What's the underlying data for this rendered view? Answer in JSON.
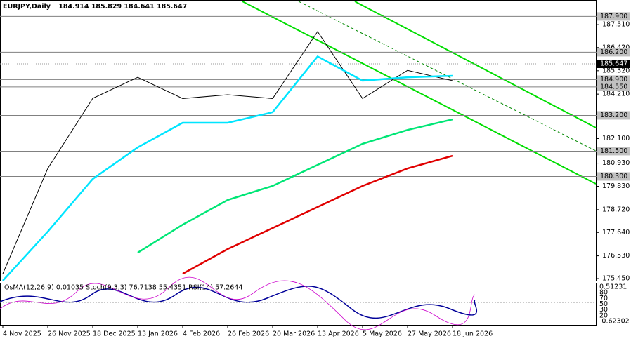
{
  "chart_data": {
    "type": "line",
    "symbol": "EURJPY,Daily",
    "ohlc_text": "184.914 185.829 184.641 185.647",
    "x": [
      "4 Nov 2025",
      "26 Nov 2025",
      "18 Dec 2025",
      "13 Jan 2026",
      "4 Feb 2026",
      "26 Feb 2026",
      "20 Mar 2026",
      "13 Apr 2026",
      "5 May 2026",
      "27 May 2026",
      "18 Jun 2026"
    ],
    "series": [
      {
        "name": "Close",
        "color": "#000000",
        "values": [
          175.68,
          180.68,
          184.01,
          185.01,
          184.0,
          184.18,
          184.0,
          187.18,
          184.0,
          185.34,
          184.85
        ]
      },
      {
        "name": "MA fast",
        "color": "#00e5ff",
        "values": [
          175.35,
          177.68,
          180.18,
          181.68,
          182.85,
          182.85,
          183.35,
          186.0,
          184.85,
          185.01,
          185.08
        ]
      },
      {
        "name": "MA medium",
        "color": "#00e676",
        "values": [
          null,
          null,
          null,
          176.68,
          178.01,
          179.18,
          179.85,
          180.85,
          181.85,
          182.51,
          183.01
        ]
      },
      {
        "name": "MA slow",
        "color": "#e00000",
        "values": [
          null,
          null,
          null,
          null,
          175.68,
          176.85,
          177.85,
          178.85,
          179.85,
          180.68,
          181.28
        ]
      }
    ],
    "ylim": [
      175.35,
      188.68
    ],
    "yticks": [
      {
        "value": 187.51,
        "label": "187.510"
      },
      {
        "value": 186.42,
        "label": "186.420"
      },
      {
        "value": 185.32,
        "label": "185.320"
      },
      {
        "value": 184.21,
        "label": "184.210"
      },
      {
        "value": 182.1,
        "label": "182.100"
      },
      {
        "value": 180.93,
        "label": "180.930"
      },
      {
        "value": 179.83,
        "label": "179.830"
      },
      {
        "value": 178.72,
        "label": "178.720"
      },
      {
        "value": 177.64,
        "label": "177.640"
      },
      {
        "value": 176.53,
        "label": "176.530"
      },
      {
        "value": 175.45,
        "label": "175.450"
      }
    ],
    "levels": [
      {
        "value": 187.9,
        "label": "187.900"
      },
      {
        "value": 186.2,
        "label": "186.200"
      },
      {
        "value": 184.9,
        "label": "184.900"
      },
      {
        "value": 184.55,
        "label": "184.550"
      },
      {
        "value": 183.2,
        "label": "183.200"
      },
      {
        "value": 181.5,
        "label": "181.500"
      },
      {
        "value": 180.3,
        "label": "180.300"
      }
    ],
    "current_price": 185.647,
    "level_color": "#808080",
    "indicator_text": "OsMA(12,26,9) 0.01035  Stoch(9,3,3) 76.7138 55.4351  RSI(14) 57.2644",
    "indicator_scale": [
      "0.51231",
      "80",
      "70",
      "50",
      "30",
      "20",
      "-0.62302"
    ]
  }
}
